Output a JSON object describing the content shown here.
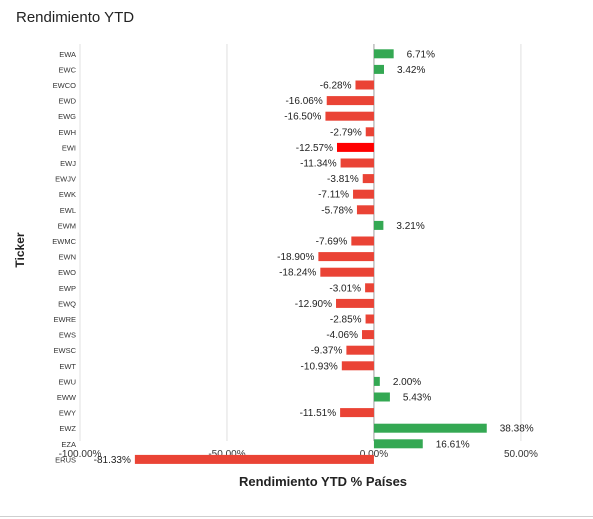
{
  "chart_data": {
    "type": "bar",
    "orientation": "horizontal",
    "title": "Rendimiento YTD",
    "xlabel": "Rendimiento YTD % Países",
    "ylabel": "Ticker",
    "xlim": [
      -100,
      65
    ],
    "xticks": [
      -100,
      -50,
      0,
      50
    ],
    "xtick_labels": [
      "-100.00%",
      "-50.00%",
      "0.00%",
      "50.00%"
    ],
    "grid": "vertical",
    "positive_color": "#34a853",
    "negative_color": "#ea4335",
    "highlight_color": "#ff0000",
    "categories": [
      "EWA",
      "EWC",
      "EWCO",
      "EWD",
      "EWG",
      "EWH",
      "EWI",
      "EWJ",
      "EWJV",
      "EWK",
      "EWL",
      "EWM",
      "EWMC",
      "EWN",
      "EWO",
      "EWP",
      "EWQ",
      "EWRE",
      "EWS",
      "EWSC",
      "EWT",
      "EWU",
      "EWW",
      "EWY",
      "EWZ",
      "EZA",
      "ERUS"
    ],
    "values": [
      6.71,
      3.42,
      -6.28,
      -16.06,
      -16.5,
      -2.79,
      -12.57,
      -11.34,
      -3.81,
      -7.11,
      -5.78,
      3.21,
      -7.69,
      -18.9,
      -18.24,
      -3.01,
      -12.9,
      -2.85,
      -4.06,
      -9.37,
      -10.93,
      2.0,
      5.43,
      -11.51,
      38.38,
      16.61,
      -81.33
    ],
    "value_labels": [
      "6.71%",
      "3.42%",
      "-6.28%",
      "-16.06%",
      "-16.50%",
      "-2.79%",
      "-12.57%",
      "-11.34%",
      "-3.81%",
      "-7.11%",
      "-5.78%",
      "3.21%",
      "-7.69%",
      "-18.90%",
      "-18.24%",
      "-3.01%",
      "-12.90%",
      "-2.85%",
      "-4.06%",
      "-9.37%",
      "-10.93%",
      "2.00%",
      "5.43%",
      "-11.51%",
      "38.38%",
      "16.61%",
      "-81.33%"
    ],
    "highlighted": [
      "EWI"
    ]
  }
}
